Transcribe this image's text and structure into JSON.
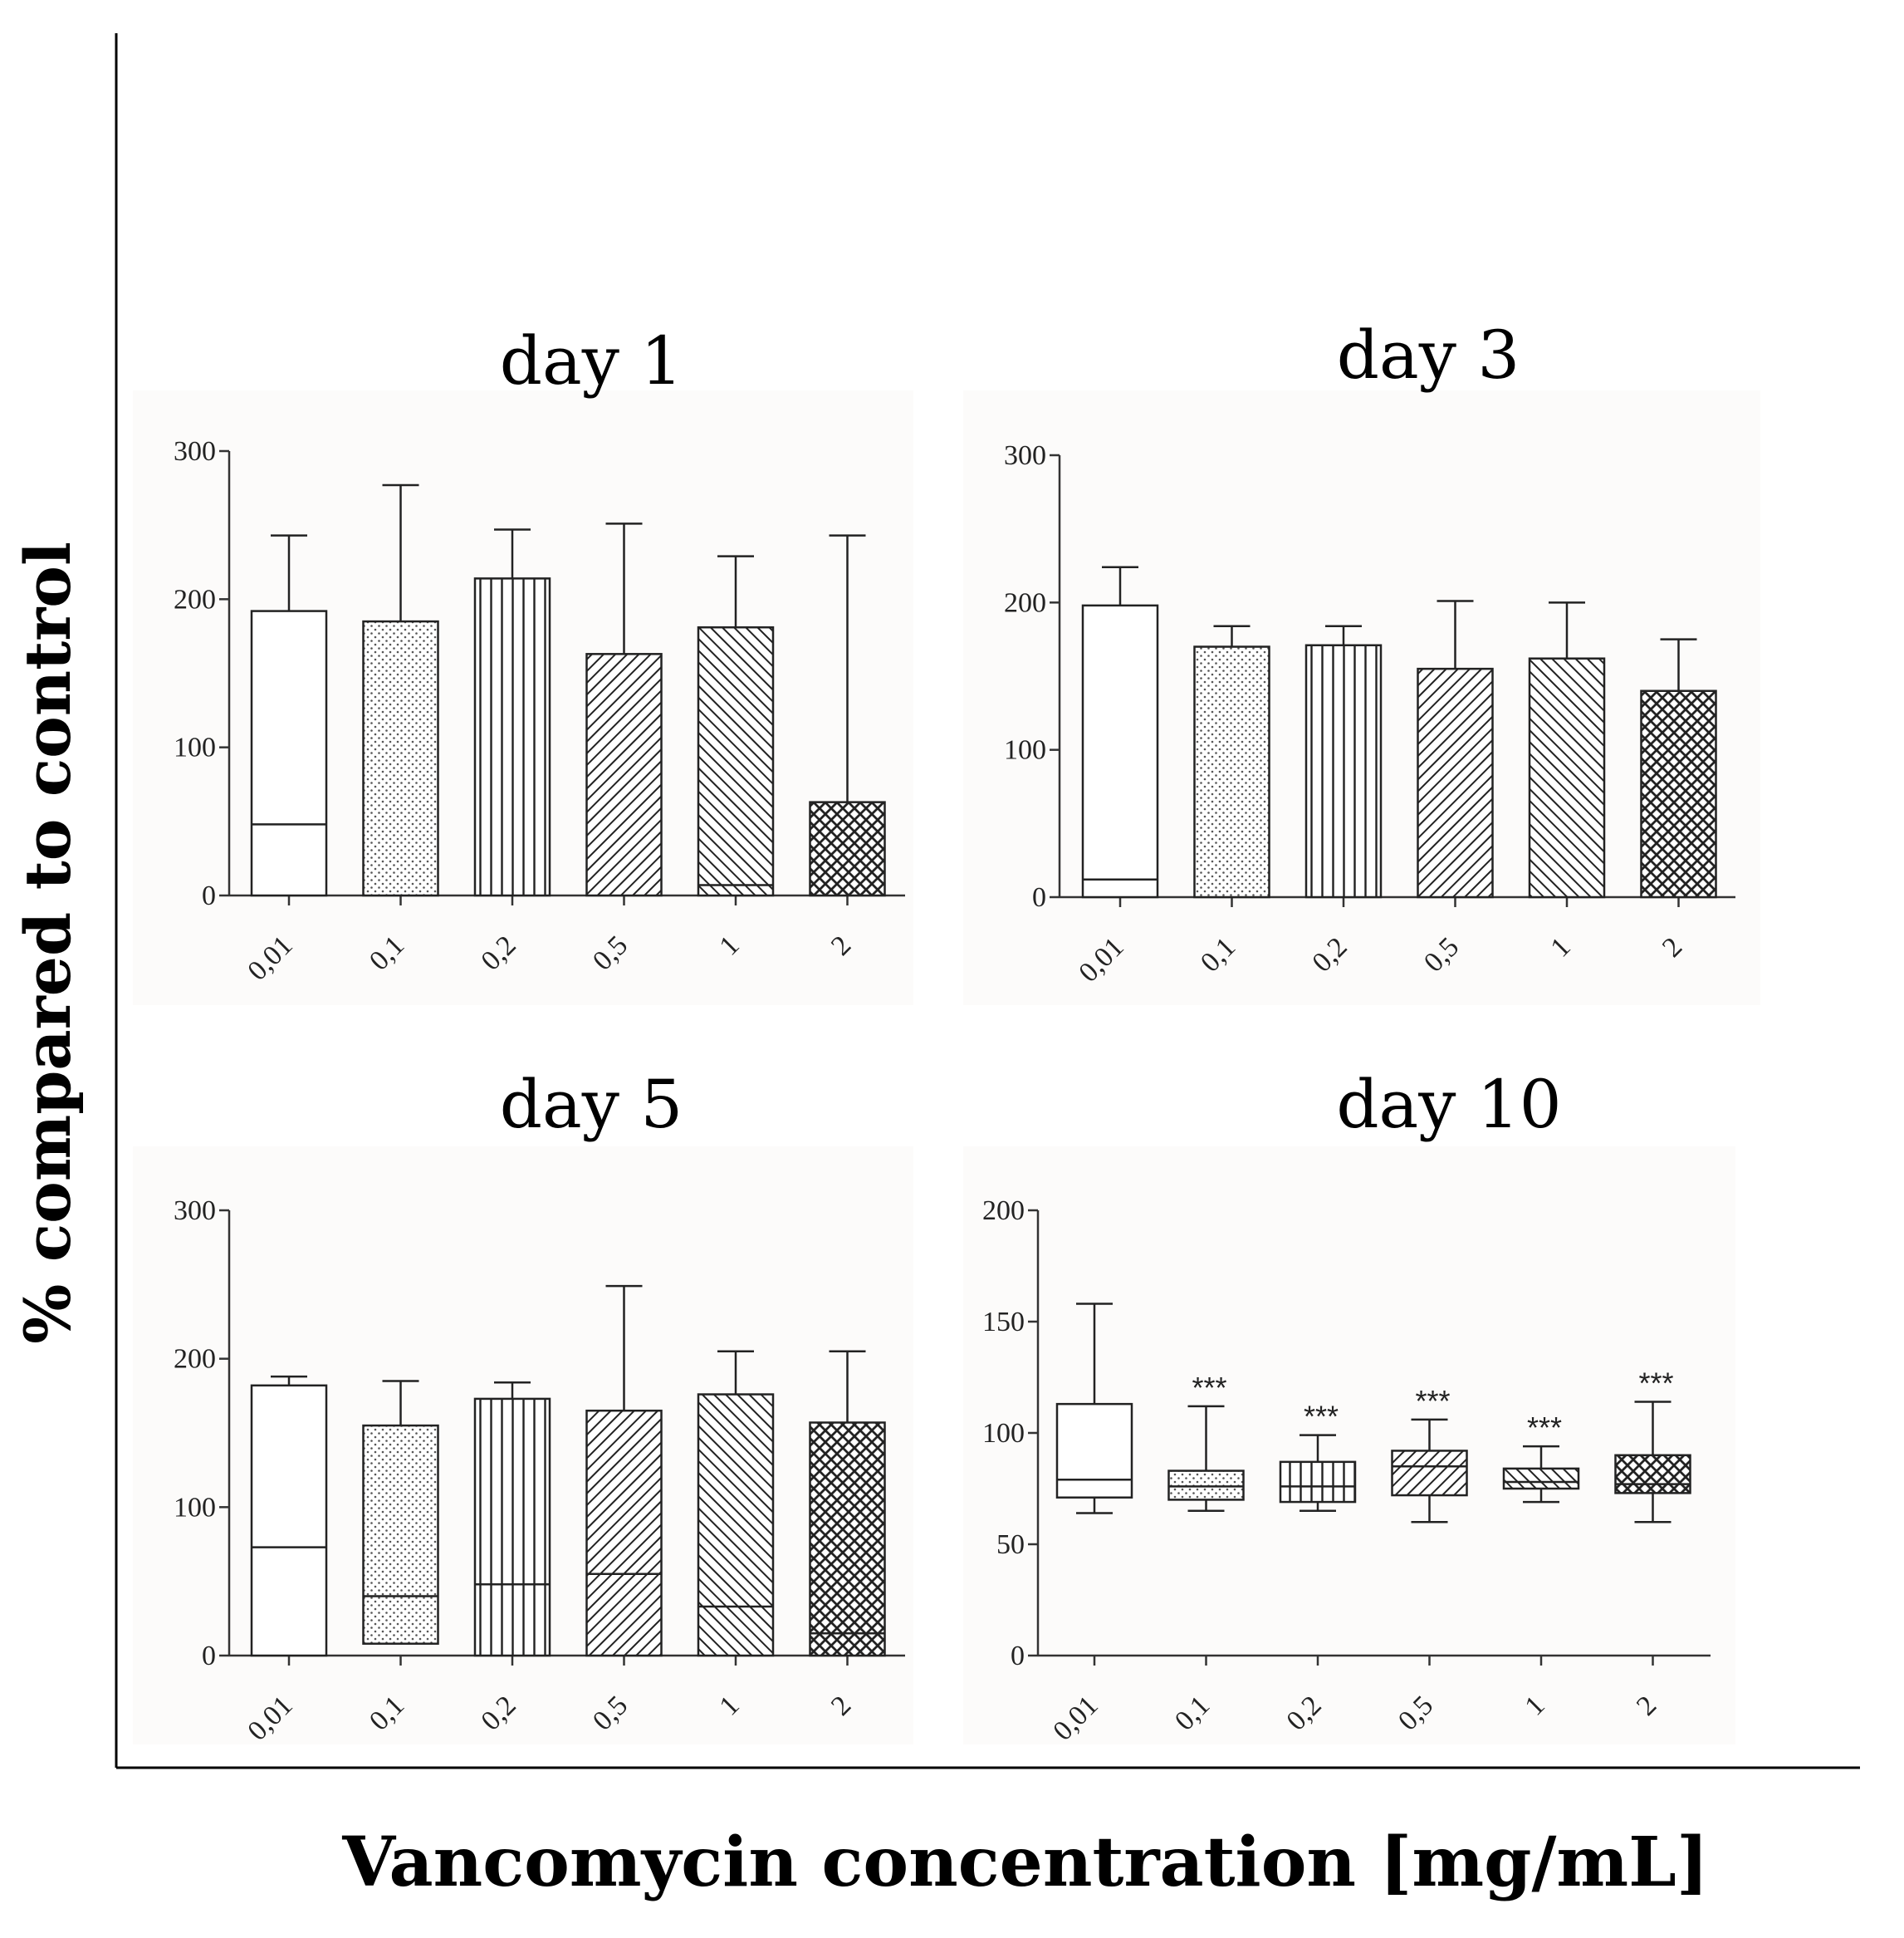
{
  "figure": {
    "ylabel": "% compared to control",
    "xlabel": "Vancomycin concentration [mg/mL]"
  },
  "chart_data": [
    {
      "title": "day 1",
      "type": "box",
      "categories": [
        "0,01",
        "0,1",
        "0,2",
        "0,5",
        "1",
        "2"
      ],
      "ylim": [
        0,
        300
      ],
      "yticks": [
        0,
        100,
        200,
        300
      ],
      "boxes": [
        {
          "low": 0,
          "median": 48,
          "high": 192,
          "max": 243,
          "pattern": "none"
        },
        {
          "low": 0,
          "median": 0,
          "high": 185,
          "max": 277,
          "pattern": "dots"
        },
        {
          "low": 0,
          "median": 0,
          "high": 214,
          "max": 247,
          "pattern": "vlines"
        },
        {
          "low": 0,
          "median": 0,
          "high": 163,
          "max": 251,
          "pattern": "diag"
        },
        {
          "low": 0,
          "median": 7,
          "high": 181,
          "max": 229,
          "pattern": "diagback"
        },
        {
          "low": 0,
          "median": 0,
          "high": 63,
          "max": 243,
          "pattern": "cross"
        }
      ],
      "annotations": []
    },
    {
      "title": "day 3",
      "type": "box",
      "categories": [
        "0,01",
        "0,1",
        "0,2",
        "0,5",
        "1",
        "2"
      ],
      "ylim": [
        0,
        300
      ],
      "yticks": [
        0,
        100,
        200,
        300
      ],
      "boxes": [
        {
          "low": 0,
          "median": 12,
          "high": 198,
          "max": 224,
          "pattern": "none"
        },
        {
          "low": 0,
          "median": 0,
          "high": 170,
          "max": 184,
          "pattern": "dots"
        },
        {
          "low": 0,
          "median": 0,
          "high": 171,
          "max": 184,
          "pattern": "vlines"
        },
        {
          "low": 0,
          "median": 0,
          "high": 155,
          "max": 201,
          "pattern": "diag"
        },
        {
          "low": 0,
          "median": 0,
          "high": 162,
          "max": 200,
          "pattern": "diagback"
        },
        {
          "low": 0,
          "median": 0,
          "high": 140,
          "max": 175,
          "pattern": "cross"
        }
      ],
      "annotations": []
    },
    {
      "title": "day 5",
      "type": "box",
      "categories": [
        "0,01",
        "0,1",
        "0,2",
        "0,5",
        "1",
        "2"
      ],
      "ylim": [
        0,
        300
      ],
      "yticks": [
        0,
        100,
        200,
        300
      ],
      "boxes": [
        {
          "low": 0,
          "median": 73,
          "high": 182,
          "max": 188,
          "pattern": "none"
        },
        {
          "low": 8,
          "median": 40,
          "high": 155,
          "max": 185,
          "pattern": "dots"
        },
        {
          "low": 0,
          "median": 48,
          "high": 173,
          "max": 184,
          "pattern": "vlines"
        },
        {
          "low": 0,
          "median": 55,
          "high": 165,
          "max": 249,
          "pattern": "diag"
        },
        {
          "low": 0,
          "median": 33,
          "high": 176,
          "max": 205,
          "pattern": "diagback"
        },
        {
          "low": 0,
          "median": 15,
          "high": 157,
          "max": 205,
          "pattern": "cross"
        }
      ],
      "annotations": []
    },
    {
      "title": "day 10",
      "type": "box",
      "categories": [
        "0,01",
        "0,1",
        "0,2",
        "0,5",
        "1",
        "2"
      ],
      "ylim": [
        0,
        200
      ],
      "yticks": [
        0,
        50,
        100,
        150,
        200
      ],
      "boxes": [
        {
          "min": 64,
          "low": 71,
          "median": 79,
          "high": 113,
          "max": 158,
          "pattern": "none"
        },
        {
          "min": 65,
          "low": 70,
          "median": 76,
          "high": 83,
          "max": 112,
          "pattern": "dots"
        },
        {
          "min": 65,
          "low": 69,
          "median": 76,
          "high": 87,
          "max": 99,
          "pattern": "vlines"
        },
        {
          "min": 60,
          "low": 72,
          "median": 85,
          "high": 92,
          "max": 106,
          "pattern": "diag"
        },
        {
          "min": 69,
          "low": 75,
          "median": 78,
          "high": 84,
          "max": 94,
          "pattern": "diagback"
        },
        {
          "min": 60,
          "low": 73,
          "median": 77,
          "high": 90,
          "max": 114,
          "pattern": "cross"
        }
      ],
      "annotations": [
        "",
        "***",
        "***",
        "***",
        "***",
        "***"
      ]
    }
  ]
}
